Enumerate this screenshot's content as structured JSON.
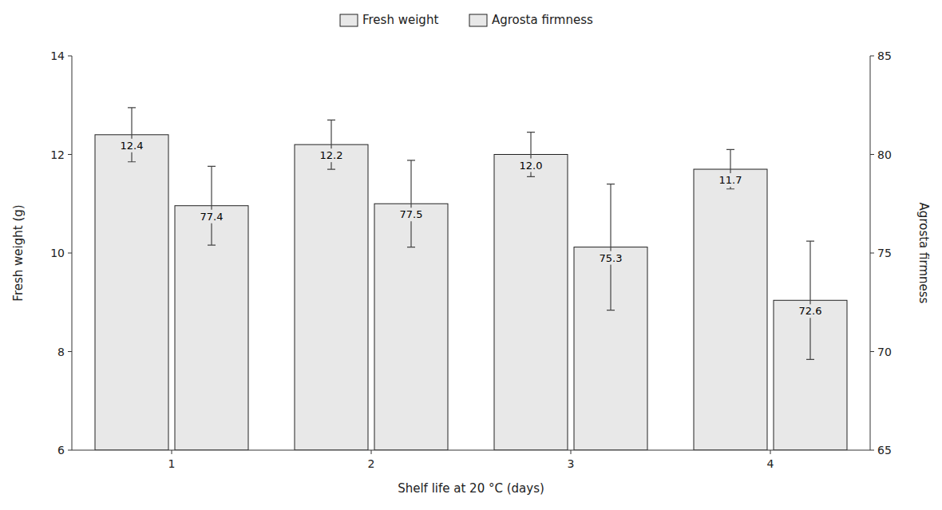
{
  "chart_data": {
    "type": "bar",
    "x_label": "Shelf life at 20 °C (days)",
    "y_label": "Fresh weight (g)",
    "y2_label": "Agrosta firmness",
    "x": [
      1,
      2,
      3,
      4
    ],
    "xlim": [
      0.5,
      4.5
    ],
    "xticks": [
      1,
      2,
      3,
      4
    ],
    "ylim": [
      6,
      14
    ],
    "yticks": [
      6,
      8,
      10,
      12,
      14
    ],
    "y2lim": [
      65,
      85
    ],
    "y2ticks": [
      65,
      70,
      75,
      80,
      85
    ],
    "series": [
      {
        "name": "Fresh weight",
        "color": "#e8e8e8",
        "values": [
          12.4,
          12.2,
          12.0,
          11.7
        ],
        "value_labels": [
          "12.4",
          "12.2",
          "12.0",
          "11.7"
        ],
        "errors": [
          0.55,
          0.5,
          0.45,
          0.4
        ]
      },
      {
        "name": "Agrosta firmness",
        "color": "#e8e8e8",
        "axis": "y2",
        "values": [
          77.4,
          77.5,
          75.3,
          72.6
        ],
        "errors": [
          2.0,
          2.2,
          3.2,
          3.0
        ]
      }
    ],
    "data_labels": true,
    "grid": false,
    "legend": "top"
  }
}
